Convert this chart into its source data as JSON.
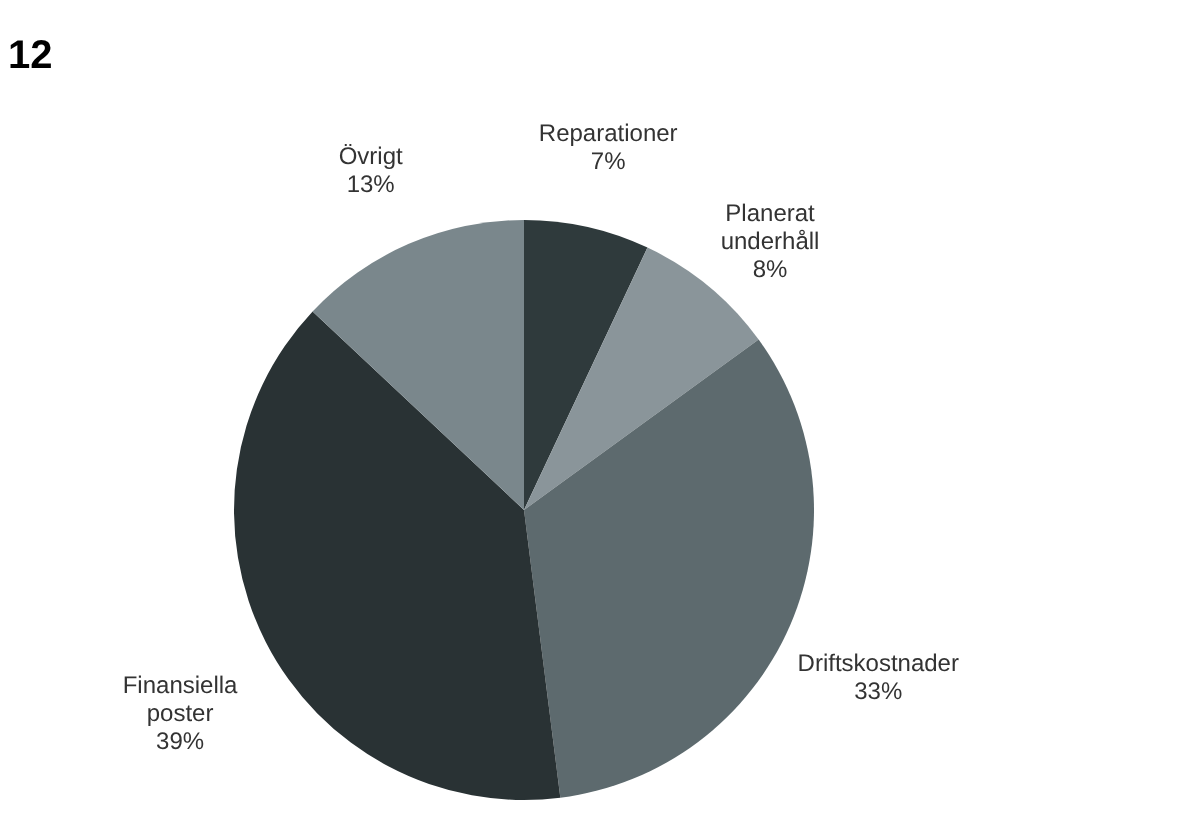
{
  "chart_data": {
    "type": "pie",
    "title": "12",
    "categories": [
      "Reparationer",
      "Planerat underhåll",
      "Driftskostnader",
      "Finansiella poster",
      "Övrigt"
    ],
    "values": [
      7,
      8,
      33,
      39,
      13
    ],
    "colors": [
      "#2f3a3c",
      "#8a959a",
      "#5d6a6e",
      "#293234",
      "#7a878c"
    ],
    "value_labels": [
      "7%",
      "8%",
      "33%",
      "39%",
      "13%"
    ],
    "legend": false
  }
}
